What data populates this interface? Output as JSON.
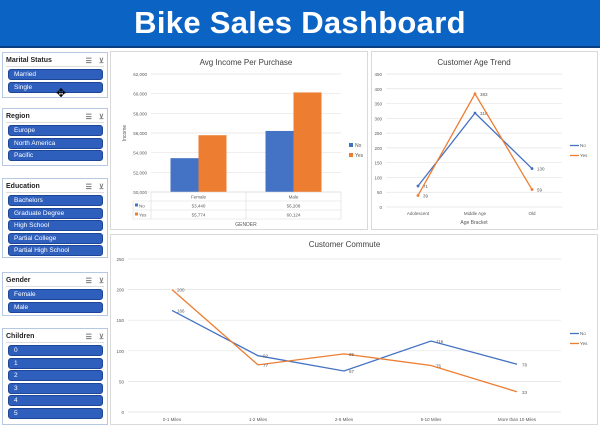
{
  "header": {
    "title": "Bike Sales Dashboard"
  },
  "colors": {
    "header": "#0b63c4",
    "slicer_item": "#2f5fbd",
    "no": "#4472c4",
    "yes": "#ed7d31"
  },
  "slicers": [
    {
      "title": "Marital Status",
      "items": [
        "Married",
        "Single"
      ]
    },
    {
      "title": "Region",
      "items": [
        "Europe",
        "North America",
        "Pacific"
      ]
    },
    {
      "title": "Education",
      "items": [
        "Bachelors",
        "Graduate Degree",
        "High School",
        "Partial College",
        "Partial High School"
      ]
    },
    {
      "title": "Gender",
      "items": [
        "Female",
        "Male"
      ]
    },
    {
      "title": "Children",
      "items": [
        "0",
        "1",
        "2",
        "3",
        "4",
        "5"
      ]
    }
  ],
  "slicer_icons": [
    "multi-select-icon",
    "clear-filter-icon"
  ],
  "chart_data": [
    {
      "type": "bar",
      "title": "Avg Income Per Purchase",
      "xlabel": "GENDER",
      "ylabel": "Income",
      "categories": [
        "Female",
        "Male"
      ],
      "ylim": [
        50000,
        62000
      ],
      "yticks": [
        "50,000",
        "52,000",
        "54,000",
        "56,000",
        "58,000",
        "60,000",
        "62,000"
      ],
      "series": [
        {
          "name": "No",
          "values": [
            53440,
            56208
          ],
          "labels": [
            "53,440",
            "56,208"
          ]
        },
        {
          "name": "Yes",
          "values": [
            55774,
            60124
          ],
          "labels": [
            "55,774",
            "60,124"
          ]
        }
      ],
      "legend": "right",
      "data_table": true,
      "grid": true
    },
    {
      "type": "line",
      "title": "Customer Age Trend",
      "xlabel": "Age Bracket",
      "ylabel": "",
      "categories": [
        "Adolescent",
        "Middle Age",
        "Old"
      ],
      "ylim": [
        0,
        450
      ],
      "yticks": [
        "0",
        "50",
        "100",
        "150",
        "200",
        "250",
        "300",
        "350",
        "400",
        "450"
      ],
      "series": [
        {
          "name": "No",
          "values": [
            71,
            318,
            130
          ]
        },
        {
          "name": "Yes",
          "values": [
            39,
            383,
            59
          ]
        }
      ],
      "legend": "right",
      "markers": true,
      "grid": true
    },
    {
      "type": "line",
      "title": "Customer Commute",
      "xlabel": "",
      "ylabel": "",
      "categories": [
        "0-1 Miles",
        "1-2 Miles",
        "2-5 Miles",
        "5-10 Miles",
        "More than 10 Miles"
      ],
      "ylim": [
        0,
        250
      ],
      "yticks": [
        "0",
        "50",
        "100",
        "150",
        "200",
        "250"
      ],
      "series": [
        {
          "name": "No",
          "values": [
            166,
            92,
            67,
            116,
            78
          ]
        },
        {
          "name": "Yes",
          "values": [
            200,
            77,
            95,
            76,
            33
          ]
        }
      ],
      "legend": "right",
      "grid": true
    }
  ]
}
